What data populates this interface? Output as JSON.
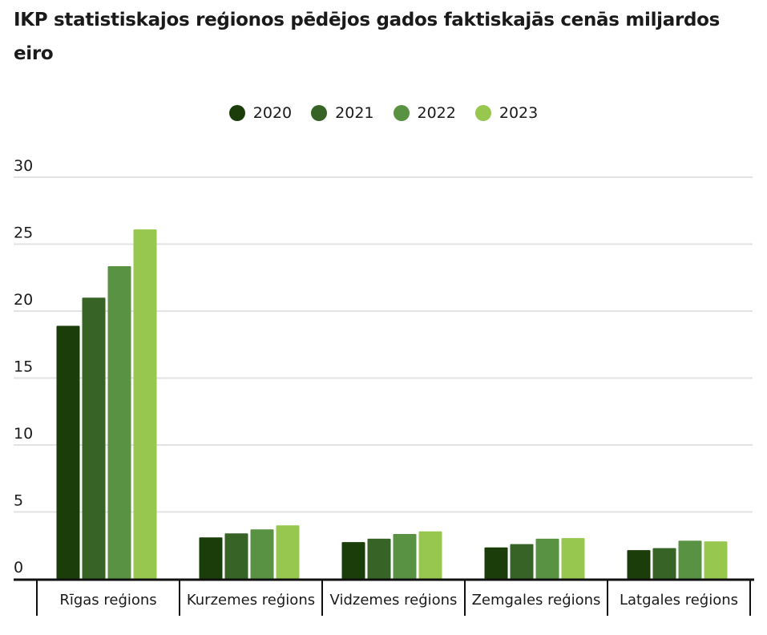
{
  "chart_data": {
    "type": "bar",
    "title": "IKP statistiskajos reģionos pēdējos gados faktiskajās cenās miljardos eiro",
    "xlabel": "",
    "ylabel": "",
    "categories": [
      "Rīgas reģions",
      "Kurzemes reģions",
      "Vidzemes reģions",
      "Zemgales reģions",
      "Latgales reģions"
    ],
    "series": [
      {
        "name": "2020",
        "color": "#1a3d0a",
        "values": [
          18.9,
          3.1,
          2.75,
          2.35,
          2.15
        ]
      },
      {
        "name": "2021",
        "color": "#376426",
        "values": [
          21.0,
          3.4,
          3.0,
          2.6,
          2.3
        ]
      },
      {
        "name": "2022",
        "color": "#5a9244",
        "values": [
          23.35,
          3.7,
          3.35,
          3.0,
          2.85
        ]
      },
      {
        "name": "2023",
        "color": "#97c74f",
        "values": [
          26.1,
          4.0,
          3.55,
          3.05,
          2.8
        ]
      }
    ],
    "ylim": [
      0,
      30
    ],
    "yticks": [
      0,
      5,
      10,
      15,
      20,
      25,
      30
    ],
    "grid": true,
    "legend_position": "top-center"
  }
}
